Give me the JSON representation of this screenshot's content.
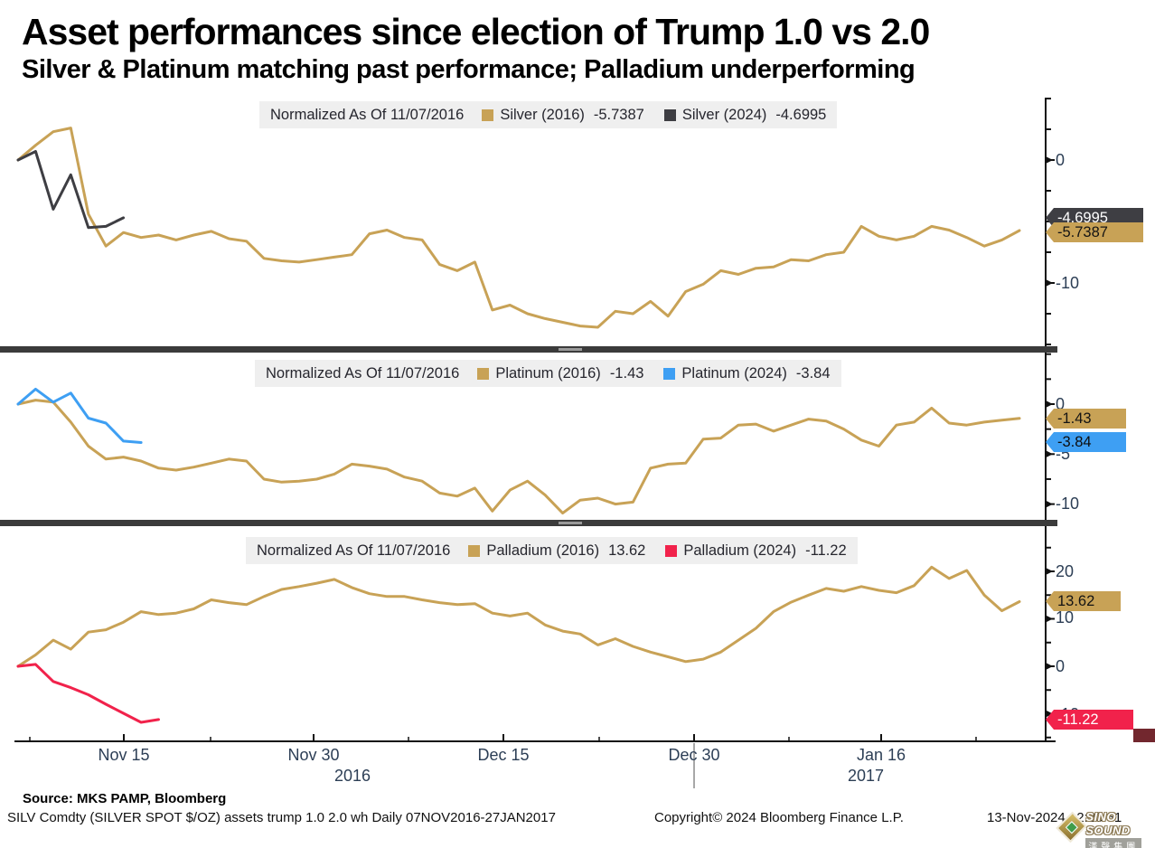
{
  "title": "Asset performances since election of Trump 1.0 vs 2.0",
  "subtitle": "Silver & Platinum matching past performance; Palladium underperforming",
  "colors": {
    "gold_2016": "#C8A256",
    "silver_2024": "#3E3E43",
    "platinum_2024": "#3E9FF3",
    "palladium_2024": "#F1224B",
    "legend_bg": "#EFEFEF",
    "axis_label": "#2C3E55",
    "separator": "#3B3B3B",
    "corner_button": "#72272E"
  },
  "chart_data": [
    {
      "type": "line",
      "asset": "Silver",
      "normalized_label": "Normalized As Of 11/07/2016",
      "ylim": [
        -15.1,
        5.1
      ],
      "ytick_minor_step": 2.5,
      "yticks": [
        {
          "value": 0,
          "label": "0"
        },
        {
          "value": -10,
          "label": "-10"
        }
      ],
      "series": [
        {
          "name": "Silver (2016)",
          "value_label": "-5.7387",
          "last_value": -5.7387,
          "color": "#C8A256",
          "badge_text_color": "#141414",
          "values": [
            0,
            1.2,
            2.3,
            2.6,
            -4.4,
            -7.0,
            -5.9,
            -6.3,
            -6.1,
            -6.5,
            -6.1,
            -5.8,
            -6.4,
            -6.6,
            -8.0,
            -8.2,
            -8.3,
            -8.1,
            -7.9,
            -7.7,
            -6.0,
            -5.7,
            -6.3,
            -6.5,
            -8.5,
            -9.0,
            -8.3,
            -12.2,
            -11.8,
            -12.5,
            -12.9,
            -13.2,
            -13.5,
            -13.6,
            -12.3,
            -12.5,
            -11.5,
            -12.7,
            -10.7,
            -10.1,
            -9.0,
            -9.3,
            -8.8,
            -8.7,
            -8.1,
            -8.2,
            -7.7,
            -7.5,
            -5.4,
            -6.2,
            -6.5,
            -6.2,
            -5.4,
            -5.7,
            -6.3,
            -7.0,
            -6.5,
            -5.7387
          ]
        },
        {
          "name": "Silver (2024)",
          "value_label": "-4.6995",
          "last_value": -4.6995,
          "color": "#3E3E43",
          "badge_text_color": "#ffffff",
          "values": [
            0,
            0.7,
            -4.0,
            -1.2,
            -5.5,
            -5.4,
            -4.6995
          ]
        }
      ]
    },
    {
      "type": "line",
      "asset": "Platinum",
      "normalized_label": "Normalized As Of 11/07/2016",
      "ylim": [
        -11.6,
        5.1
      ],
      "ytick_minor_step": 2.5,
      "yticks": [
        {
          "value": 0,
          "label": "0"
        },
        {
          "value": -5,
          "label": "-5"
        },
        {
          "value": -10,
          "label": "-10"
        }
      ],
      "series": [
        {
          "name": "Platinum (2016)",
          "value_label": "-1.43",
          "last_value": -1.43,
          "color": "#C8A256",
          "badge_text_color": "#141414",
          "values": [
            0,
            0.4,
            0.2,
            -1.8,
            -4.2,
            -5.5,
            -5.3,
            -5.7,
            -6.4,
            -6.6,
            -6.3,
            -5.9,
            -5.5,
            -5.7,
            -7.5,
            -7.8,
            -7.7,
            -7.5,
            -7.0,
            -6.0,
            -6.2,
            -6.5,
            -7.3,
            -7.7,
            -8.9,
            -9.2,
            -8.4,
            -10.7,
            -8.6,
            -7.7,
            -9.1,
            -10.9,
            -9.6,
            -9.4,
            -10.0,
            -9.8,
            -6.4,
            -6.0,
            -5.9,
            -3.5,
            -3.4,
            -2.1,
            -2.0,
            -2.7,
            -2.1,
            -1.5,
            -1.7,
            -2.5,
            -3.6,
            -4.2,
            -2.1,
            -1.8,
            -0.4,
            -1.9,
            -2.1,
            -1.8,
            -1.6,
            -1.43
          ]
        },
        {
          "name": "Platinum (2024)",
          "value_label": "-3.84",
          "last_value": -3.84,
          "color": "#3E9FF3",
          "badge_text_color": "#0d0d0d",
          "values": [
            0,
            1.5,
            0.2,
            1.1,
            -1.4,
            -1.9,
            -3.7,
            -3.84
          ]
        }
      ]
    },
    {
      "type": "line",
      "asset": "Palladium",
      "normalized_label": "Normalized As Of 11/07/2016",
      "ylim": [
        -15.8,
        29.3
      ],
      "ytick_minor_step": 5,
      "yticks": [
        {
          "value": 20,
          "label": "20"
        },
        {
          "value": 10,
          "label": "10"
        },
        {
          "value": 0,
          "label": "0"
        },
        {
          "value": -10,
          "label": "-10"
        }
      ],
      "series": [
        {
          "name": "Palladium (2016)",
          "value_label": "13.62",
          "last_value": 13.62,
          "color": "#C8A256",
          "badge_text_color": "#141414",
          "values": [
            0,
            2.4,
            5.5,
            3.6,
            7.2,
            7.7,
            9.3,
            11.5,
            10.9,
            11.2,
            12.1,
            14.0,
            13.4,
            13.0,
            14.7,
            16.2,
            16.8,
            17.5,
            18.3,
            16.6,
            15.3,
            14.7,
            14.7,
            14.0,
            13.4,
            13.0,
            13.2,
            11.2,
            10.6,
            11.2,
            8.7,
            7.4,
            6.8,
            4.5,
            5.8,
            4.2,
            3.0,
            2.0,
            1.0,
            1.5,
            3.0,
            5.5,
            8.0,
            11.5,
            13.5,
            15.0,
            16.4,
            15.8,
            16.8,
            16.0,
            15.5,
            17.0,
            20.9,
            18.5,
            20.2,
            15.0,
            11.7,
            13.62
          ]
        },
        {
          "name": "Palladium (2024)",
          "value_label": "-11.22",
          "last_value": -11.22,
          "color": "#F1224B",
          "badge_text_color": "#ffffff",
          "values": [
            0,
            0.4,
            -3.2,
            -4.5,
            -6.0,
            -8.0,
            -9.9,
            -11.8,
            -11.22
          ]
        }
      ]
    }
  ],
  "x_axis": {
    "tick_labels": [
      "Nov 15",
      "Nov 30",
      "Dec 15",
      "Dec 30",
      "Jan 16"
    ],
    "year_labels": [
      "2016",
      "2017"
    ],
    "range_label": "07NOV2016-27JAN2017"
  },
  "footer": {
    "source": "Source: MKS PAMP, Bloomberg",
    "description": "SILV Comdty (SILVER SPOT $/OZ) assets trump 1.0 2.0 wh  Daily 07NOV2016-27JAN2017",
    "copyright": "Copyright© 2024 Bloomberg Finance L.P.",
    "timestamp": "13-Nov-2024 12:25:51"
  },
  "watermark": {
    "line1": "SINO SOUND",
    "line2": "漢聲集團"
  }
}
